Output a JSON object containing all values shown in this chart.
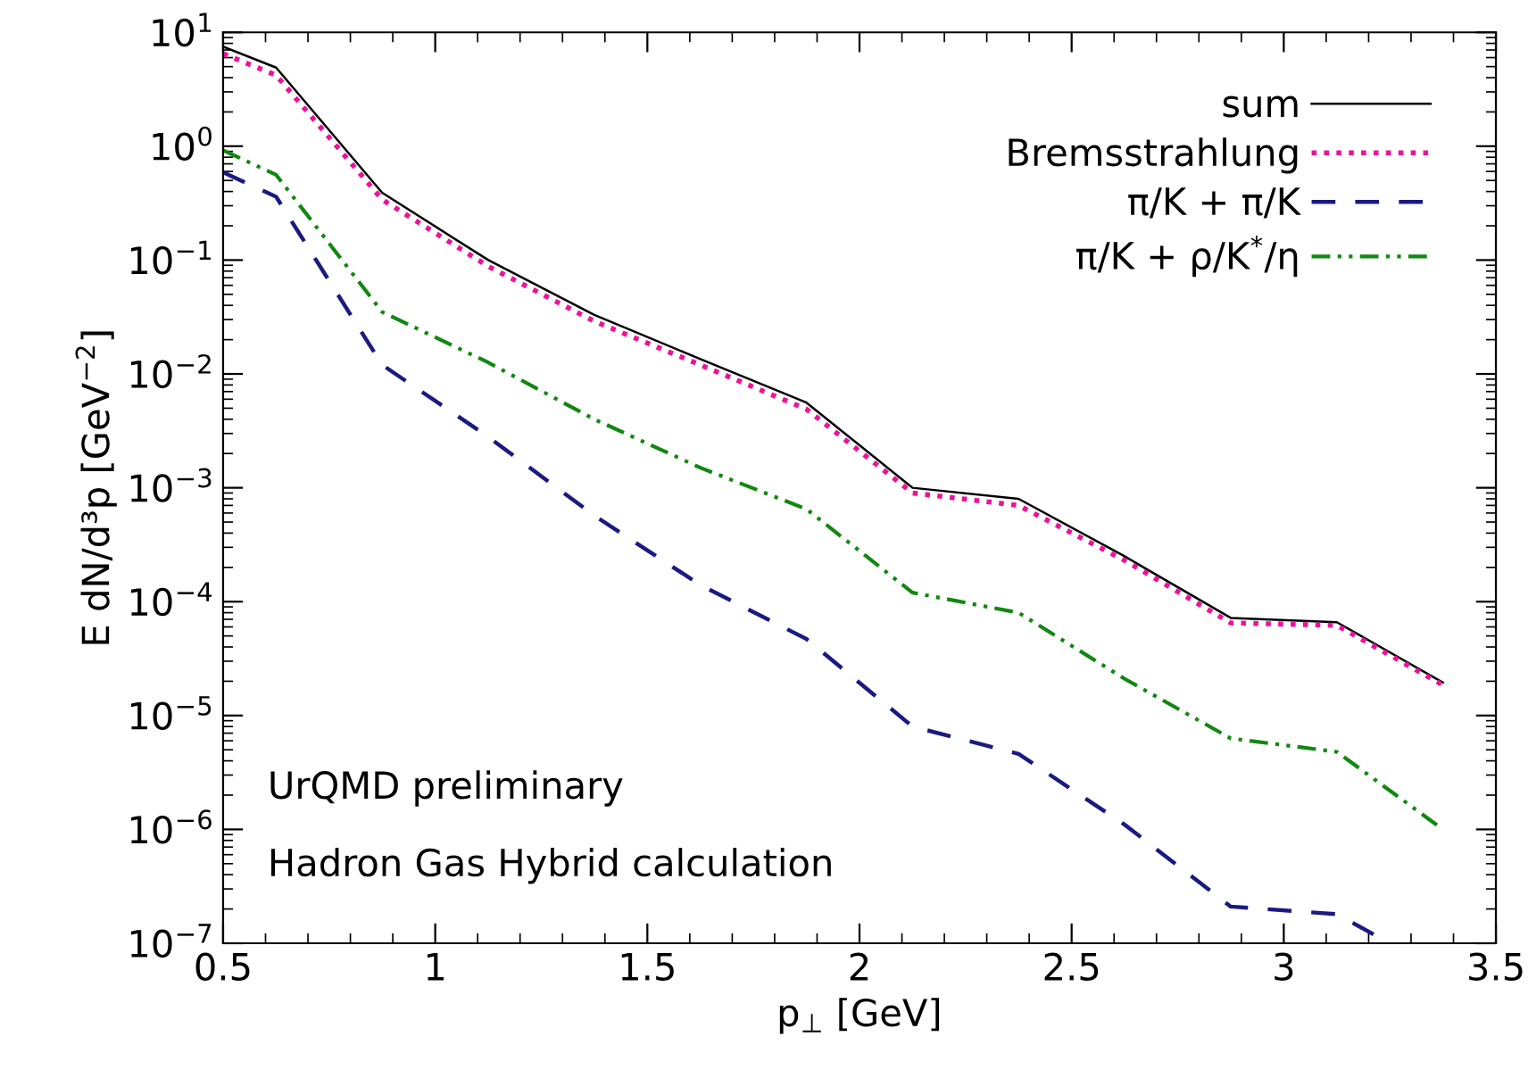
{
  "chart_data": {
    "type": "line",
    "xlabel": "p$_{⊥}$ [GeV]",
    "ylabel": "E dN/d³p [GeV$^{−2}$]",
    "x": [
      0.5,
      0.625,
      0.875,
      1.125,
      1.375,
      1.625,
      1.875,
      2.125,
      2.375,
      2.625,
      2.875,
      3.125,
      3.375
    ],
    "series": [
      {
        "name": "sum",
        "color": "#000000",
        "line_style": "solid",
        "values": [
          7.5,
          4.9,
          0.39,
          0.1,
          0.033,
          0.0135,
          0.0056,
          0.001,
          0.0008,
          0.00025,
          7.2e-05,
          6.6e-05,
          1.95e-05
        ]
      },
      {
        "name": "Bremsstrahlung",
        "color": "#ee1199",
        "line_style": "dotted",
        "values": [
          6.5,
          4.2,
          0.34,
          0.088,
          0.029,
          0.012,
          0.0049,
          0.0009,
          0.0007,
          0.00023,
          6.5e-05,
          6.2e-05,
          1.85e-05
        ]
      },
      {
        "name": "π/K + π/K",
        "color": "#1a1a80",
        "line_style": "dashed",
        "x": [
          0.5,
          0.625,
          0.875,
          1.125,
          1.375,
          1.625,
          1.875,
          2.125,
          2.375,
          2.625,
          2.875,
          3.125,
          3.25
        ],
        "values": [
          0.59,
          0.36,
          0.012,
          0.0028,
          0.00057,
          0.00014,
          4.7e-05,
          8e-06,
          4.6e-06,
          1.1e-06,
          2.1e-07,
          1.8e-07,
          1e-07
        ]
      },
      {
        "name": "π/K + ρ/K$^{*}$/η",
        "color": "#118811",
        "line_style": "dashdot",
        "values": [
          0.92,
          0.56,
          0.035,
          0.0126,
          0.004,
          0.0015,
          0.00065,
          0.00012,
          8e-05,
          2.1e-05,
          6.3e-06,
          4.8e-06,
          1e-06
        ]
      }
    ],
    "log": "y",
    "xlim": [
      0.5,
      3.5
    ],
    "ylim": [
      1e-07,
      10
    ],
    "xticks": [
      0.5,
      1,
      1.5,
      2,
      2.5,
      3,
      3.5
    ],
    "yticks": [
      {
        "value": 1e-07,
        "label": "10$^{−7}$"
      },
      {
        "value": 1e-06,
        "label": "10$^{−6}$"
      },
      {
        "value": 1e-05,
        "label": "10$^{−5}$"
      },
      {
        "value": 0.0001,
        "label": "10$^{−4}$"
      },
      {
        "value": 0.001,
        "label": "10$^{−3}$"
      },
      {
        "value": 0.01,
        "label": "10$^{−2}$"
      },
      {
        "value": 0.1,
        "label": "10$^{−1}$"
      },
      {
        "value": 1,
        "label": "10$^{0}$"
      },
      {
        "value": 10,
        "label": "10$^{1}$"
      }
    ],
    "legend": "top right",
    "grid": false,
    "annotations": [
      "UrQMD preliminary",
      "Hadron Gas Hybrid calculation"
    ]
  }
}
